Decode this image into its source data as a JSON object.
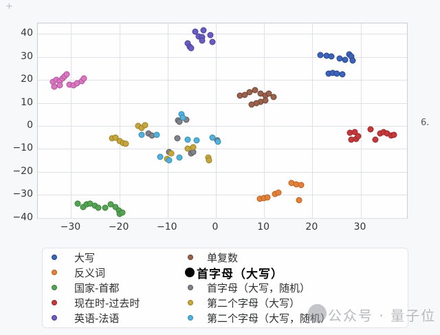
{
  "figure": {
    "corner_mark": "+",
    "side_caption": "6.",
    "watermark_text": "公众号 · 量子位",
    "watermark_logo": "qbitai-circle-logo"
  },
  "chart_data": {
    "type": "scatter",
    "title": "",
    "xlabel": "",
    "ylabel": "",
    "xlim": [
      -36.9,
      39.9
    ],
    "ylim": [
      -40.7,
      44.6
    ],
    "xticks": [
      -30,
      -20,
      -10,
      0,
      10,
      20,
      30
    ],
    "yticks": [
      40,
      30,
      20,
      10,
      0,
      -10,
      -20,
      -30,
      -40
    ],
    "grid": true,
    "legend_position": "bottom",
    "legend_columns": 2,
    "highlighted_legend_entry": "首字母（大写）",
    "series": [
      {
        "name": "大写",
        "color": "#3c64b8",
        "edge": "#27448c",
        "points": [
          [
            21.7,
            30.8
          ],
          [
            22.9,
            30.5
          ],
          [
            23.9,
            30.2
          ],
          [
            25.6,
            29.3
          ],
          [
            26.8,
            28.7
          ],
          [
            27.6,
            31.1
          ],
          [
            28.1,
            30.2
          ],
          [
            28.3,
            28.4
          ],
          [
            23.4,
            22.8
          ],
          [
            24.2,
            23.1
          ],
          [
            25.1,
            22.8
          ],
          [
            26.2,
            22.5
          ]
        ]
      },
      {
        "name": "反义词",
        "color": "#e2813a",
        "edge": "#bb5f1c",
        "points": [
          [
            9.1,
            -31.7
          ],
          [
            10.0,
            -31.4
          ],
          [
            10.7,
            -31.1
          ],
          [
            12.3,
            -29.6
          ],
          [
            13.0,
            -29.0
          ],
          [
            15.7,
            -24.9
          ],
          [
            16.7,
            -25.4
          ],
          [
            17.7,
            -25.7
          ],
          [
            17.2,
            -32.3
          ]
        ]
      },
      {
        "name": "国家-首都",
        "color": "#56a356",
        "edge": "#37803a",
        "points": [
          [
            -28.6,
            -33.8
          ],
          [
            -27.5,
            -35.3
          ],
          [
            -26.8,
            -34.1
          ],
          [
            -26.1,
            -33.8
          ],
          [
            -25.1,
            -34.7
          ],
          [
            -24.4,
            -35.6
          ],
          [
            -22.9,
            -35.6
          ],
          [
            -21.8,
            -34.1
          ],
          [
            -20.8,
            -35.3
          ],
          [
            -20.1,
            -36.8
          ],
          [
            -19.9,
            -38.3
          ],
          [
            -19.4,
            -37.7
          ]
        ]
      },
      {
        "name": "现在时-过去时",
        "color": "#c23a3d",
        "edge": "#9c2629",
        "points": [
          [
            27.8,
            -3.0
          ],
          [
            28.8,
            -2.7
          ],
          [
            28.1,
            -6.0
          ],
          [
            29.1,
            -5.7
          ],
          [
            29.5,
            -4.5
          ],
          [
            32.1,
            -1.5
          ],
          [
            33.0,
            -6.0
          ],
          [
            34.0,
            -3.3
          ],
          [
            34.8,
            -2.7
          ],
          [
            35.5,
            -3.3
          ],
          [
            36.3,
            -4.2
          ],
          [
            36.9,
            -3.9
          ]
        ]
      },
      {
        "name": "英语-法语",
        "color": "#695dc0",
        "edge": "#4a3f99",
        "points": [
          [
            -4.3,
            41.0
          ],
          [
            -2.6,
            41.6
          ],
          [
            -3.6,
            38.9
          ],
          [
            -2.8,
            38.6
          ],
          [
            -1.1,
            39.5
          ],
          [
            -0.7,
            36.5
          ],
          [
            -2.8,
            37.1
          ],
          [
            -5.8,
            35.9
          ],
          [
            -5.4,
            34.4
          ],
          [
            -5.1,
            33.8
          ]
        ]
      },
      {
        "name": "单复数",
        "color": "#99624d",
        "edge": "#6f4334",
        "points": [
          [
            5.0,
            13.2
          ],
          [
            6.0,
            13.5
          ],
          [
            7.0,
            14.7
          ],
          [
            8.1,
            15.6
          ],
          [
            9.3,
            14.1
          ],
          [
            10.3,
            13.2
          ],
          [
            11.0,
            14.1
          ],
          [
            12.0,
            12.6
          ],
          [
            9.3,
            10.5
          ],
          [
            8.4,
            9.9
          ],
          [
            7.4,
            9.3
          ],
          [
            10.3,
            11.1
          ]
        ]
      },
      {
        "name": "首字母（大写）",
        "color": "#d778c0",
        "edge": "#b1509b",
        "points": [
          [
            -33.8,
            19.2
          ],
          [
            -33.0,
            20.1
          ],
          [
            -32.3,
            19.5
          ],
          [
            -31.8,
            20.7
          ],
          [
            -31.3,
            21.6
          ],
          [
            -30.9,
            22.5
          ],
          [
            -33.5,
            17.1
          ],
          [
            -32.3,
            17.7
          ],
          [
            -30.3,
            18.0
          ],
          [
            -29.5,
            17.7
          ],
          [
            -28.8,
            18.6
          ],
          [
            -27.8,
            19.5
          ],
          [
            -27.4,
            20.7
          ]
        ]
      },
      {
        "name": "首字母（大写，随机）",
        "color": "#82828a",
        "edge": "#58585f",
        "points": [
          [
            -14.0,
            -3.3
          ],
          [
            -13.2,
            -4.2
          ],
          [
            -8.0,
            -5.4
          ],
          [
            -7.8,
            2.4
          ],
          [
            -7.5,
            1.8
          ],
          [
            -6.1,
            2.7
          ],
          [
            -9.7,
            -11.4
          ],
          [
            -5.1,
            -12.0
          ],
          [
            -4.7,
            -11.4
          ],
          [
            0.3,
            -6.3
          ]
        ]
      },
      {
        "name": "第二个字母（大写）",
        "color": "#c6a63f",
        "edge": "#9a8021",
        "points": [
          [
            -21.5,
            -5.4
          ],
          [
            -20.8,
            -5.1
          ],
          [
            -19.9,
            -6.6
          ],
          [
            -19.2,
            -7.5
          ],
          [
            -18.7,
            -7.8
          ],
          [
            -16.1,
            0.0
          ],
          [
            -15.4,
            -0.9
          ],
          [
            -14.7,
            0.3
          ],
          [
            -10.1,
            -14.4
          ],
          [
            -9.3,
            -12.0
          ],
          [
            -5.8,
            -9.9
          ],
          [
            -4.7,
            -9.3
          ],
          [
            -1.6,
            -13.8
          ],
          [
            -1.4,
            -15.0
          ]
        ]
      },
      {
        "name": "第二个字母（大写，随机）",
        "color": "#56b1da",
        "edge": "#2f8cb4",
        "points": [
          [
            -15.4,
            -3.9
          ],
          [
            -12.3,
            -3.9
          ],
          [
            -11.5,
            -13.5
          ],
          [
            -9.7,
            -15.0
          ],
          [
            -7.5,
            -13.8
          ],
          [
            -7.1,
            5.1
          ],
          [
            -6.8,
            3.6
          ],
          [
            -5.8,
            -6.0
          ],
          [
            -4.0,
            -6.3
          ],
          [
            -0.7,
            -5.1
          ],
          [
            0.4,
            -6.9
          ]
        ]
      }
    ]
  },
  "legend": {
    "columns": [
      {
        "items": [
          {
            "series": 0,
            "highlight": false
          },
          {
            "series": 1,
            "highlight": false
          },
          {
            "series": 2,
            "highlight": false
          },
          {
            "series": 3,
            "highlight": false
          },
          {
            "series": 4,
            "highlight": false
          }
        ]
      },
      {
        "items": [
          {
            "series": 5,
            "highlight": false
          },
          {
            "series": 6,
            "highlight": true
          },
          {
            "series": 7,
            "highlight": false
          },
          {
            "series": 8,
            "highlight": false
          },
          {
            "series": 9,
            "highlight": false
          }
        ]
      }
    ]
  }
}
